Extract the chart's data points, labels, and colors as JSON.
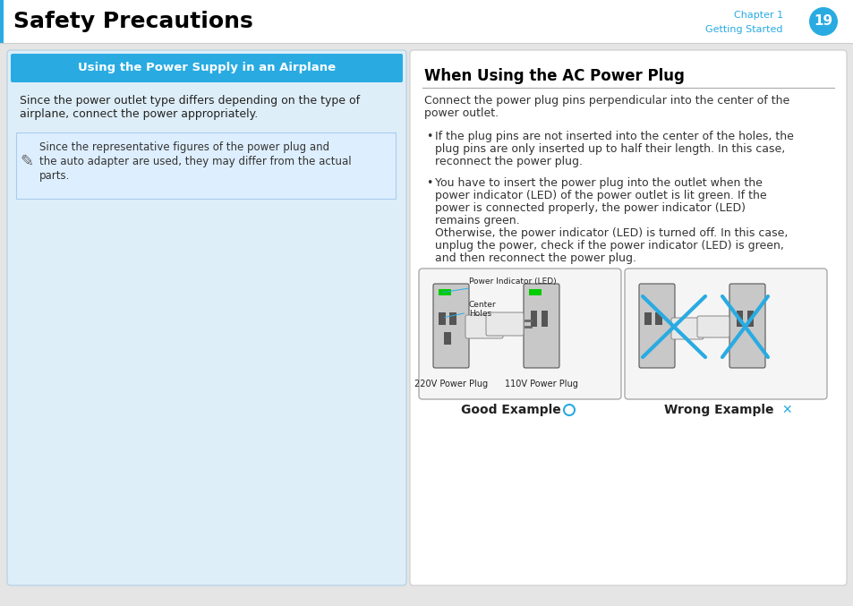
{
  "bg_color": "#e5e5e5",
  "header_bg": "#ffffff",
  "header_title": "Safety Precautions",
  "header_title_color": "#000000",
  "header_chapter": "Chapter 1",
  "header_getting_started": "Getting Started",
  "header_page_num": "19",
  "header_circle_color": "#29abe2",
  "header_text_color": "#29abe2",
  "left_panel_bg": "#deeef8",
  "left_panel_border": "#b0cfe0",
  "left_banner_bg": "#29abe2",
  "left_banner_text": "Using the Power Supply in an Airplane",
  "left_banner_text_color": "#ffffff",
  "left_body_text1": "Since the power outlet type differs depending on the type of",
  "left_body_text2": "airplane, connect the power appropriately.",
  "left_note_bg": "#ddeeff",
  "left_note_border": "#aaccee",
  "left_note_text1": "Since the representative figures of the power plug and",
  "left_note_text2": "the auto adapter are used, they may differ from the actual",
  "left_note_text3": "parts.",
  "right_panel_bg": "#ffffff",
  "right_panel_border": "#cccccc",
  "right_title": "When Using the AC Power Plug",
  "right_title_color": "#000000",
  "right_intro1": "Connect the power plug pins perpendicular into the center of the",
  "right_intro2": "power outlet.",
  "bullet1_line1": "If the plug pins are not inserted into the center of the holes, the",
  "bullet1_line2": "plug pins are only inserted up to half their length. In this case,",
  "bullet1_line3": "reconnect the power plug.",
  "bullet2_line1": "You have to insert the power plug into the outlet when the",
  "bullet2_line2": "power indicator (LED) of the power outlet is lit green. If the",
  "bullet2_line3": "power is connected properly, the power indicator (LED)",
  "bullet2_line4": "remains green.",
  "bullet2_line5": "Otherwise, the power indicator (LED) is turned off. In this case,",
  "bullet2_line6": "unplug the power, check if the power indicator (LED) is green,",
  "bullet2_line7": "and then reconnect the power plug.",
  "good_example_label": "Good Example",
  "wrong_example_label": "Wrong Example",
  "label_220v": "220V Power Plug",
  "label_110v": "110V Power Plug",
  "accent_color": "#29abe2",
  "divider_color": "#aaaaaa",
  "text_color": "#333333",
  "note_icon": "✎"
}
